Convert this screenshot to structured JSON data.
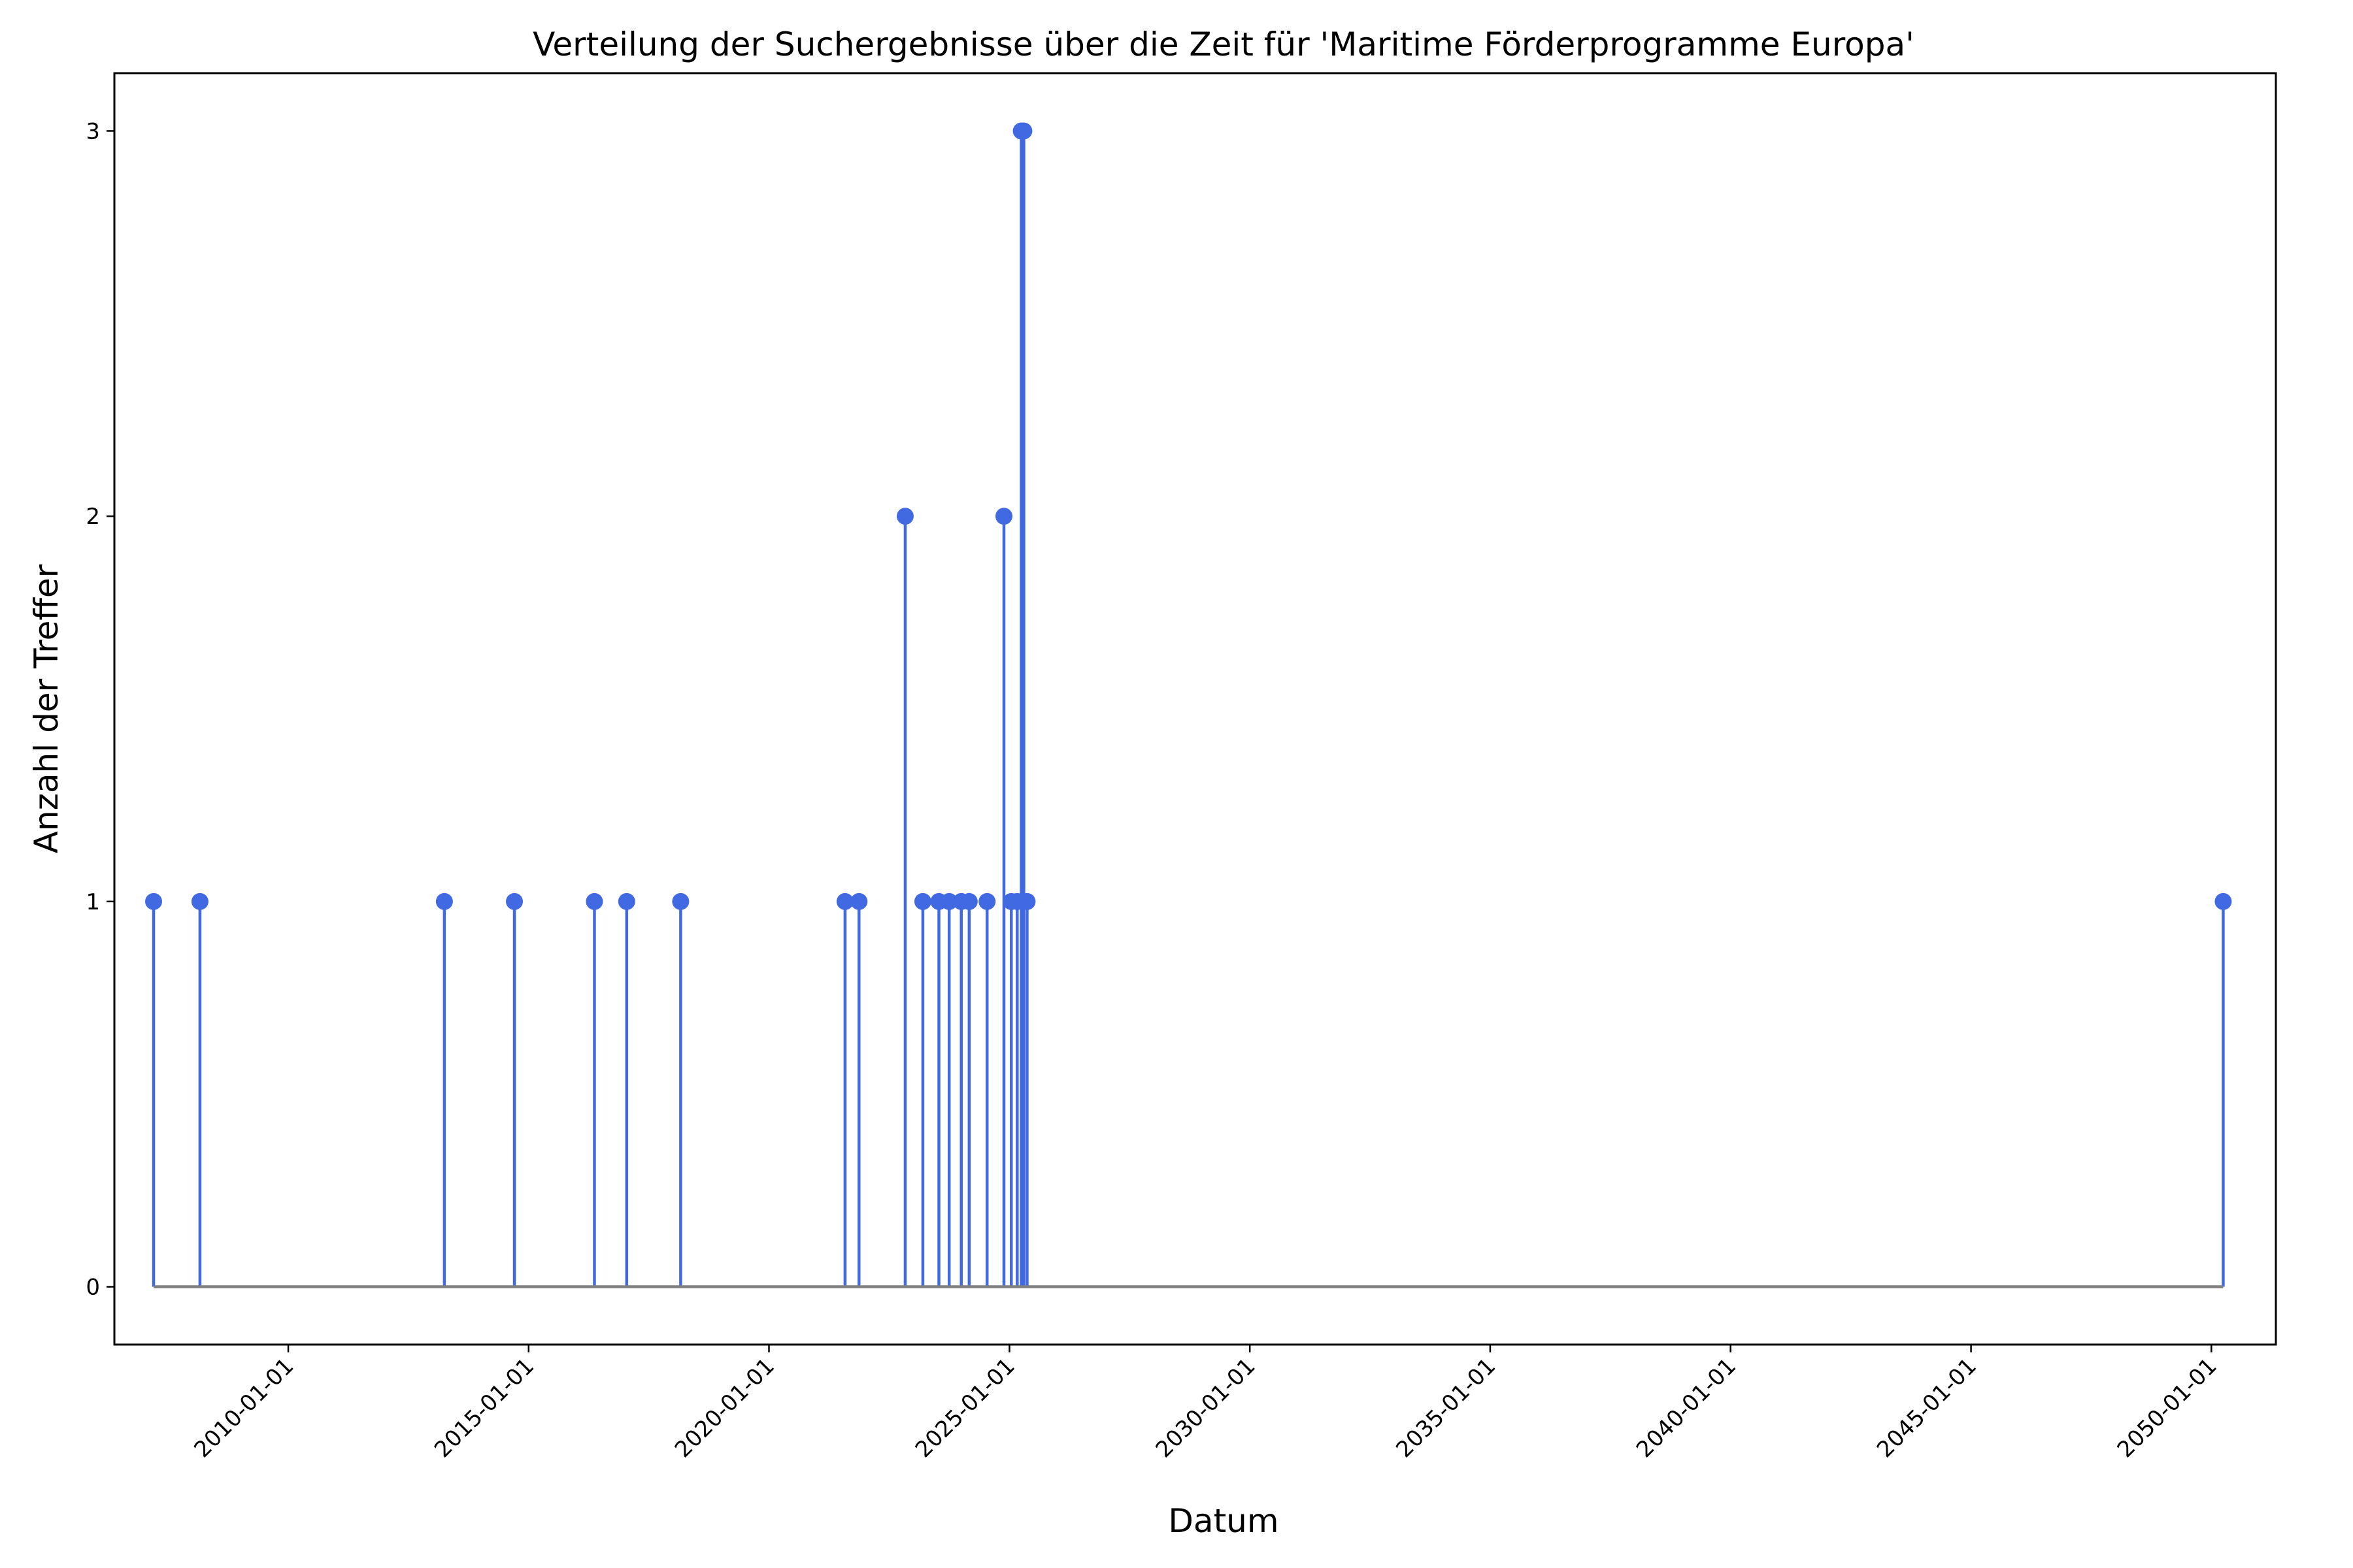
{
  "chart_data": {
    "type": "stem",
    "title": "Verteilung der Suchergebnisse über die Zeit für 'Maritime Förderprogramme Europa'",
    "xlabel": "Datum",
    "ylabel": "Anzahl der Treffer",
    "x_ticks": [
      "2010-01-01",
      "2015-01-01",
      "2020-01-01",
      "2025-01-01",
      "2030-01-01",
      "2035-01-01",
      "2040-01-01",
      "2045-01-01",
      "2050-01-01"
    ],
    "y_ticks": [
      "0",
      "1",
      "2",
      "3"
    ],
    "xlim": [
      "2006-05-21",
      "2051-05-06"
    ],
    "ylim": [
      -0.15,
      3.15
    ],
    "grid": false,
    "baseline": 0,
    "stem_color": "#4169E1",
    "baseline_color": "#808080",
    "x": [
      "2007-03-15",
      "2008-03-01",
      "2013-04-01",
      "2014-09-15",
      "2016-05-15",
      "2017-01-15",
      "2018-03-01",
      "2021-08-01",
      "2021-11-15",
      "2022-11-01",
      "2023-03-15",
      "2023-07-15",
      "2023-10-01",
      "2024-01-01",
      "2024-03-01",
      "2024-07-15",
      "2024-11-20",
      "2025-01-15",
      "2025-03-01",
      "2025-04-01",
      "2025-04-20",
      "2025-05-15",
      "2050-04-01"
    ],
    "y": [
      1,
      1,
      1,
      1,
      1,
      1,
      1,
      1,
      1,
      2,
      1,
      1,
      1,
      1,
      1,
      1,
      2,
      1,
      1,
      3,
      3,
      1,
      1
    ]
  }
}
